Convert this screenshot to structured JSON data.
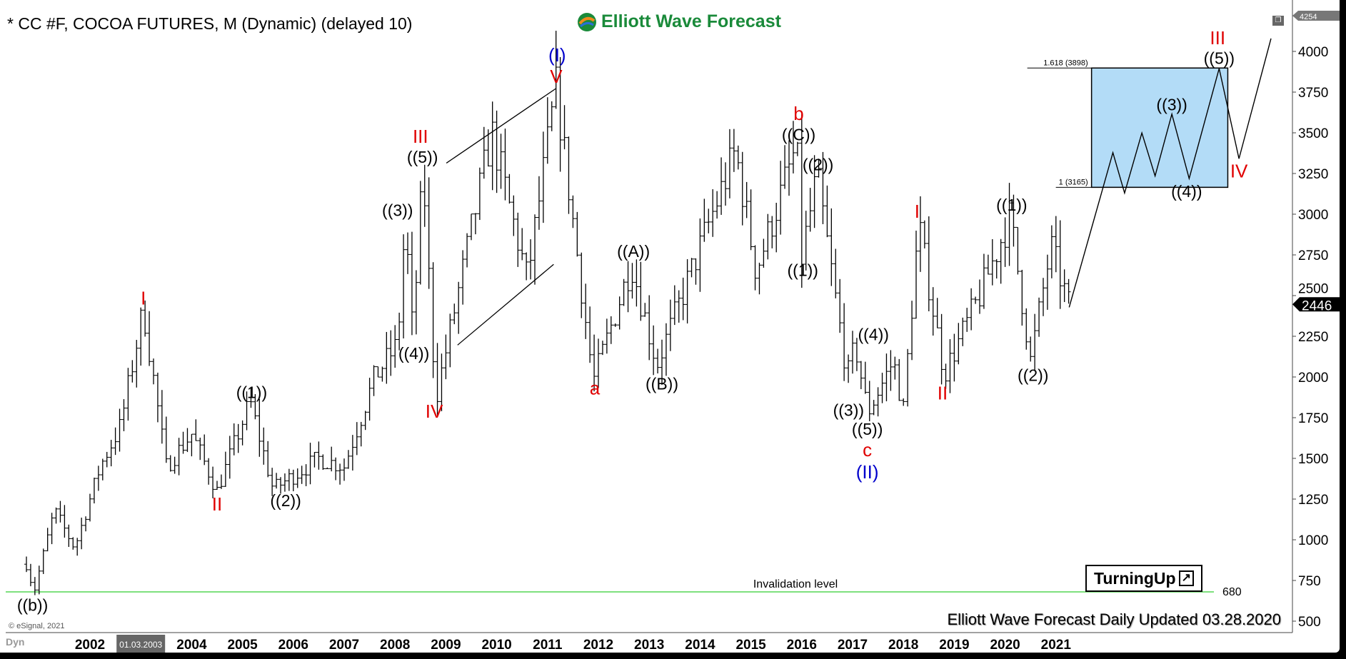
{
  "header": {
    "title": "* CC #F, COCOA FUTURES, M (Dynamic) (delayed 10)",
    "logo_text": "Elliott Wave Forecast"
  },
  "footer": {
    "updated": "Elliott Wave Forecast Daily Updated 03.28.2020",
    "copyright": "© eSignal, 2021",
    "dyn": "Dyn",
    "turning_up": "TurningUp"
  },
  "colors": {
    "red": "#e00000",
    "blue": "#0000cc",
    "box": "#b3dcf7",
    "invalidation": "#7ee07e",
    "last_price_bg": "#000"
  },
  "chart_data": {
    "type": "ohlc-bar",
    "timeframe": "monthly",
    "ylim": [
      500,
      4254
    ],
    "yticks": [
      500,
      750,
      1000,
      1250,
      1500,
      1750,
      2000,
      2250,
      2500,
      2750,
      3000,
      3250,
      3500,
      3750,
      4000
    ],
    "xticks": [
      "2002",
      "01.03.2003",
      "2004",
      "2005",
      "2006",
      "2007",
      "2008",
      "2009",
      "2010",
      "2011",
      "2012",
      "2013",
      "2014",
      "2015",
      "2016",
      "2017",
      "2018",
      "2019",
      "2020",
      "2021"
    ],
    "top_price": "4254",
    "last_price": 2446,
    "swing_points": [
      [
        2000.75,
        850
      ],
      [
        2000.9,
        680
      ],
      [
        2001.3,
        1180
      ],
      [
        2001.7,
        950
      ],
      [
        2002.2,
        1450
      ],
      [
        2002.6,
        1700
      ],
      [
        2003.05,
        2420
      ],
      [
        2003.5,
        1450
      ],
      [
        2004.0,
        1650
      ],
      [
        2004.5,
        1300
      ],
      [
        2005.15,
        1850
      ],
      [
        2005.6,
        1310
      ],
      [
        2006.5,
        1500
      ],
      [
        2007.0,
        1450
      ],
      [
        2007.6,
        2000
      ],
      [
        2008.05,
        2200
      ],
      [
        2008.2,
        2950
      ],
      [
        2008.35,
        2250
      ],
      [
        2008.55,
        3280
      ],
      [
        2008.8,
        1860
      ],
      [
        2009.9,
        3500
      ],
      [
        2010.6,
        2600
      ],
      [
        2011.17,
        3775
      ],
      [
        2011.9,
        1970
      ],
      [
        2012.65,
        2700
      ],
      [
        2013.15,
        2075
      ],
      [
        2014.7,
        3390
      ],
      [
        2015.1,
        2650
      ],
      [
        2015.9,
        3420
      ],
      [
        2016.0,
        2735
      ],
      [
        2016.3,
        3235
      ],
      [
        2016.9,
        2000
      ],
      [
        2017.05,
        2200
      ],
      [
        2017.3,
        1780
      ],
      [
        2017.8,
        2100
      ],
      [
        2018.0,
        1800
      ],
      [
        2018.3,
        2935
      ],
      [
        2018.8,
        2020
      ],
      [
        2019.5,
        2500
      ],
      [
        2020.1,
        2990
      ],
      [
        2020.5,
        2100
      ],
      [
        2020.9,
        2800
      ],
      [
        2021.25,
        2446
      ]
    ],
    "projection": [
      [
        2021.26,
        2428
      ],
      [
        2022.12,
        3378
      ],
      [
        2022.35,
        3130
      ],
      [
        2022.69,
        3499
      ],
      [
        2022.95,
        3235
      ],
      [
        2023.28,
        3615
      ],
      [
        2023.62,
        3219
      ],
      [
        2024.21,
        3895
      ],
      [
        2024.6,
        3341
      ],
      [
        2025.23,
        4079
      ]
    ],
    "fib_box": {
      "x0": 2021.7,
      "x1": 2024.38,
      "top": 3898,
      "bottom": 3165,
      "top_label": "1.618 (3898)",
      "bottom_label": "1 (3165)"
    },
    "diagonal_lines": [
      [
        [
          2009.01,
          3314
        ],
        [
          2011.17,
          3773
        ]
      ],
      [
        [
          2009.23,
          2196
        ],
        [
          2011.12,
          2692
        ]
      ]
    ],
    "invalidation": {
      "price": 680,
      "label": "Invalidation level",
      "value_label": "680"
    },
    "labels": [
      {
        "t": "((b))",
        "x": 2000.87,
        "y": 598,
        "c": "black"
      },
      {
        "t": "I",
        "x": 2003.05,
        "y": 2481,
        "c": "red"
      },
      {
        "t": "II",
        "x": 2004.5,
        "y": 1215,
        "c": "red"
      },
      {
        "t": "((1))",
        "x": 2005.18,
        "y": 1906,
        "c": "black"
      },
      {
        "t": "((2))",
        "x": 2005.85,
        "y": 1242,
        "c": "black"
      },
      {
        "t": "((3))",
        "x": 2008.05,
        "y": 3024,
        "c": "black"
      },
      {
        "t": "((4))",
        "x": 2008.37,
        "y": 2144,
        "c": "black"
      },
      {
        "t": "((5))",
        "x": 2008.54,
        "y": 3351,
        "c": "black"
      },
      {
        "t": "III",
        "x": 2008.5,
        "y": 3473,
        "c": "red"
      },
      {
        "t": "IV",
        "x": 2008.77,
        "y": 1785,
        "c": "red"
      },
      {
        "t": "(I)",
        "x": 2011.19,
        "y": 3974,
        "c": "blue"
      },
      {
        "t": "V",
        "x": 2011.17,
        "y": 3842,
        "c": "red"
      },
      {
        "t": "a",
        "x": 2011.93,
        "y": 1927,
        "c": "red"
      },
      {
        "t": "((A))",
        "x": 2012.69,
        "y": 2771,
        "c": "black"
      },
      {
        "t": "((B))",
        "x": 2013.25,
        "y": 1959,
        "c": "black"
      },
      {
        "t": "b",
        "x": 2015.94,
        "y": 3615,
        "c": "red"
      },
      {
        "t": "((C))",
        "x": 2015.94,
        "y": 3488,
        "c": "black"
      },
      {
        "t": "((2))",
        "x": 2016.32,
        "y": 3304,
        "c": "black"
      },
      {
        "t": "((1))",
        "x": 2016.02,
        "y": 2655,
        "c": "black"
      },
      {
        "t": "((4))",
        "x": 2017.41,
        "y": 2260,
        "c": "black"
      },
      {
        "t": "((3))",
        "x": 2016.92,
        "y": 1795,
        "c": "black"
      },
      {
        "t": "((5))",
        "x": 2017.29,
        "y": 1679,
        "c": "black"
      },
      {
        "t": "c",
        "x": 2017.29,
        "y": 1584,
        "c": "red"
      },
      {
        "t": "(II)",
        "x": 2017.29,
        "y": 1468,
        "c": "blue"
      },
      {
        "t": "I",
        "x": 2018.27,
        "y": 3014,
        "c": "red"
      },
      {
        "t": "II",
        "x": 2018.77,
        "y": 1896,
        "c": "red"
      },
      {
        "t": "((1))",
        "x": 2020.13,
        "y": 3056,
        "c": "black"
      },
      {
        "t": "((2))",
        "x": 2020.55,
        "y": 2012,
        "c": "black"
      },
      {
        "t": "III",
        "x": 2024.18,
        "y": 4079,
        "c": "red"
      },
      {
        "t": "((5))",
        "x": 2024.21,
        "y": 3958,
        "c": "black"
      },
      {
        "t": "((3))",
        "x": 2023.28,
        "y": 3673,
        "c": "black"
      },
      {
        "t": "((4))",
        "x": 2023.57,
        "y": 3140,
        "c": "black"
      },
      {
        "t": "IV",
        "x": 2024.6,
        "y": 3262,
        "c": "red"
      }
    ]
  }
}
